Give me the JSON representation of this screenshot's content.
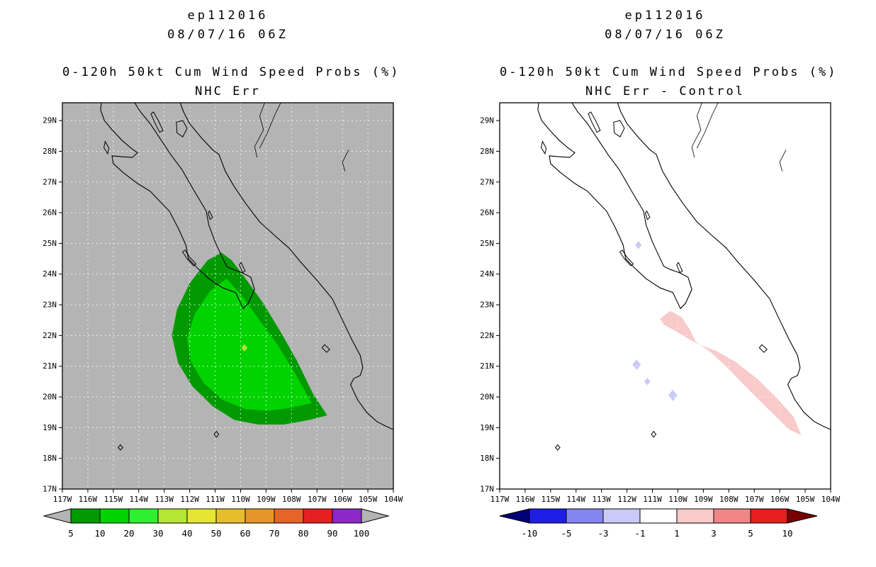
{
  "page": {
    "background": "#ffffff"
  },
  "basemap": {
    "coastlines": [
      [
        [
          -115.45,
          29.7
        ],
        [
          -115.5,
          29.35
        ],
        [
          -115.35,
          29.0
        ],
        [
          -115.05,
          28.7
        ],
        [
          -114.65,
          28.35
        ],
        [
          -114.3,
          28.1
        ],
        [
          -114.05,
          27.95
        ],
        [
          -114.25,
          27.8
        ],
        [
          -114.65,
          27.82
        ],
        [
          -115.05,
          27.85
        ],
        [
          -115.0,
          27.6
        ],
        [
          -114.6,
          27.3
        ],
        [
          -114.05,
          26.95
        ],
        [
          -113.55,
          26.7
        ],
        [
          -113.15,
          26.35
        ],
        [
          -112.8,
          26.05
        ],
        [
          -112.45,
          25.5
        ],
        [
          -112.15,
          24.95
        ],
        [
          -112.05,
          24.5
        ],
        [
          -111.7,
          24.2
        ],
        [
          -111.25,
          23.85
        ],
        [
          -110.7,
          23.55
        ],
        [
          -110.2,
          23.4
        ],
        [
          -109.9,
          22.88
        ],
        [
          -109.7,
          23.05
        ],
        [
          -109.45,
          23.5
        ],
        [
          -109.6,
          23.9
        ],
        [
          -109.95,
          24.05
        ],
        [
          -110.3,
          24.15
        ],
        [
          -110.55,
          24.25
        ],
        [
          -110.75,
          24.6
        ],
        [
          -111.0,
          25.05
        ],
        [
          -111.25,
          25.6
        ],
        [
          -111.35,
          26.05
        ],
        [
          -111.85,
          26.75
        ],
        [
          -112.3,
          27.4
        ],
        [
          -112.75,
          27.9
        ],
        [
          -113.15,
          28.4
        ],
        [
          -113.55,
          28.9
        ],
        [
          -113.95,
          29.3
        ],
        [
          -114.25,
          29.7
        ]
      ],
      [
        [
          -112.42,
          29.7
        ],
        [
          -112.25,
          29.3
        ],
        [
          -112.0,
          28.9
        ],
        [
          -111.55,
          28.45
        ],
        [
          -111.1,
          28.05
        ],
        [
          -110.85,
          27.9
        ],
        [
          -110.6,
          27.35
        ],
        [
          -110.25,
          26.85
        ],
        [
          -109.8,
          26.3
        ],
        [
          -109.25,
          25.7
        ],
        [
          -108.65,
          25.25
        ],
        [
          -108.1,
          24.85
        ],
        [
          -107.65,
          24.4
        ],
        [
          -107.0,
          23.8
        ],
        [
          -106.4,
          23.2
        ],
        [
          -106.0,
          22.5
        ],
        [
          -105.65,
          21.9
        ],
        [
          -105.3,
          21.35
        ],
        [
          -105.2,
          20.95
        ],
        [
          -105.3,
          20.7
        ],
        [
          -105.55,
          20.6
        ],
        [
          -105.68,
          20.4
        ],
        [
          -105.4,
          19.9
        ],
        [
          -105.05,
          19.5
        ],
        [
          -104.65,
          19.2
        ],
        [
          -104.3,
          19.05
        ],
        [
          -103.9,
          18.9
        ]
      ]
    ],
    "islands": [
      [
        [
          -113.42,
          29.28
        ],
        [
          -113.22,
          28.98
        ],
        [
          -113.05,
          28.68
        ],
        [
          -113.18,
          28.62
        ],
        [
          -113.38,
          28.95
        ],
        [
          -113.52,
          29.22
        ]
      ],
      [
        [
          -112.52,
          28.95
        ],
        [
          -112.27,
          29.0
        ],
        [
          -112.1,
          28.75
        ],
        [
          -112.27,
          28.47
        ],
        [
          -112.5,
          28.6
        ]
      ],
      [
        [
          -115.32,
          28.32
        ],
        [
          -115.17,
          28.1
        ],
        [
          -115.22,
          27.92
        ],
        [
          -115.37,
          28.12
        ]
      ],
      [
        [
          -112.18,
          24.78
        ],
        [
          -112.0,
          24.55
        ],
        [
          -111.75,
          24.33
        ],
        [
          -111.85,
          24.27
        ],
        [
          -112.1,
          24.5
        ],
        [
          -112.28,
          24.72
        ]
      ],
      [
        [
          -109.98,
          24.38
        ],
        [
          -109.82,
          24.1
        ],
        [
          -109.92,
          24.05
        ],
        [
          -110.05,
          24.3
        ]
      ],
      [
        [
          -111.22,
          26.05
        ],
        [
          -111.1,
          25.85
        ],
        [
          -111.2,
          25.78
        ],
        [
          -111.28,
          26.0
        ]
      ],
      [
        [
          -106.7,
          21.7
        ],
        [
          -106.5,
          21.55
        ],
        [
          -106.62,
          21.45
        ],
        [
          -106.8,
          21.6
        ]
      ],
      [
        [
          -110.95,
          18.88
        ],
        [
          -110.86,
          18.78
        ],
        [
          -110.95,
          18.69
        ],
        [
          -111.04,
          18.78
        ]
      ],
      [
        [
          -114.72,
          18.44
        ],
        [
          -114.63,
          18.35
        ],
        [
          -114.72,
          18.27
        ],
        [
          -114.81,
          18.35
        ]
      ]
    ],
    "rivers": [
      [
        [
          -109.0,
          29.7
        ],
        [
          -109.25,
          29.15
        ],
        [
          -109.1,
          28.7
        ],
        [
          -109.45,
          28.15
        ],
        [
          -109.35,
          27.8
        ]
      ],
      [
        [
          -108.35,
          29.7
        ],
        [
          -108.65,
          29.2
        ],
        [
          -108.95,
          28.6
        ],
        [
          -109.25,
          28.1
        ]
      ],
      [
        [
          -105.75,
          28.05
        ],
        [
          -106.0,
          27.65
        ],
        [
          -105.9,
          27.35
        ]
      ]
    ]
  },
  "chart_data": [
    {
      "type": "filled_contour_map",
      "panel": "left",
      "title": "ep112016",
      "init_time": "08/07/16 06Z",
      "subtitle": "0-120h 50kt Cum Wind Speed Probs (%)",
      "model_label": "NHC Err",
      "units": "%",
      "background_color": "#b4b4b4",
      "lon_range_deg_west": [
        117,
        104
      ],
      "lat_range_deg_north": [
        17,
        29.58
      ],
      "lat_ticks": [
        "17N",
        "18N",
        "19N",
        "20N",
        "21N",
        "22N",
        "23N",
        "24N",
        "25N",
        "26N",
        "27N",
        "28N",
        "29N"
      ],
      "lon_ticks": [
        "117W",
        "116W",
        "115W",
        "114W",
        "113W",
        "112W",
        "111W",
        "110W",
        "109W",
        "108W",
        "107W",
        "106W",
        "105W",
        "104W"
      ],
      "grid": {
        "show": true,
        "color": "#ffffff",
        "style": "dotted"
      },
      "regions": [
        {
          "name": "wind-prob-5pct",
          "level": "5-10%",
          "color": "#009a00",
          "polygon": [
            [
              -110.75,
              24.7
            ],
            [
              -111.3,
              24.45
            ],
            [
              -112.0,
              23.7
            ],
            [
              -112.5,
              22.85
            ],
            [
              -112.7,
              22.0
            ],
            [
              -112.45,
              21.1
            ],
            [
              -111.9,
              20.35
            ],
            [
              -111.1,
              19.7
            ],
            [
              -110.25,
              19.25
            ],
            [
              -109.3,
              19.1
            ],
            [
              -108.3,
              19.1
            ],
            [
              -107.3,
              19.25
            ],
            [
              -106.6,
              19.4
            ],
            [
              -107.15,
              20.1
            ],
            [
              -107.8,
              21.2
            ],
            [
              -108.45,
              22.15
            ],
            [
              -109.15,
              23.1
            ],
            [
              -109.8,
              23.85
            ],
            [
              -110.35,
              24.45
            ]
          ]
        },
        {
          "name": "wind-prob-10pct",
          "level": "10-20%",
          "color": "#00d300",
          "polygon": [
            [
              -110.55,
              23.85
            ],
            [
              -111.2,
              23.45
            ],
            [
              -111.8,
              22.7
            ],
            [
              -112.1,
              21.9
            ],
            [
              -111.95,
              21.15
            ],
            [
              -111.45,
              20.45
            ],
            [
              -110.7,
              19.9
            ],
            [
              -109.8,
              19.6
            ],
            [
              -108.9,
              19.55
            ],
            [
              -108.0,
              19.65
            ],
            [
              -107.2,
              19.8
            ],
            [
              -107.85,
              20.75
            ],
            [
              -108.55,
              21.7
            ],
            [
              -109.3,
              22.55
            ],
            [
              -109.95,
              23.3
            ]
          ]
        },
        {
          "name": "wind-prob-30pct",
          "level": "30-40%",
          "color": "#b4e632",
          "polygon": [
            [
              -109.85,
              21.72
            ],
            [
              -109.73,
              21.6
            ],
            [
              -109.85,
              21.48
            ],
            [
              -109.97,
              21.6
            ]
          ]
        }
      ],
      "colorbar": {
        "labels": [
          "5",
          "10",
          "20",
          "30",
          "40",
          "50",
          "60",
          "70",
          "80",
          "90",
          "100"
        ],
        "cell_colors": [
          "#009a00",
          "#00d300",
          "#2ef02e",
          "#b4e632",
          "#e6e632",
          "#e6be2d",
          "#e69628",
          "#e66428",
          "#e62020",
          "#8c28c8"
        ],
        "left_arrow_color": "#b4b4b4",
        "right_arrow_color": "#b4b4b4"
      }
    },
    {
      "type": "filled_contour_map",
      "panel": "right",
      "title": "ep112016",
      "init_time": "08/07/16 06Z",
      "subtitle": "0-120h 50kt Cum Wind Speed Probs (%)",
      "model_label": "NHC Err - Control",
      "units": "%",
      "background_color": "#ffffff",
      "lon_range_deg_west": [
        117,
        104
      ],
      "lat_range_deg_north": [
        17,
        29.58
      ],
      "lat_ticks": [
        "17N",
        "18N",
        "19N",
        "20N",
        "21N",
        "22N",
        "23N",
        "24N",
        "25N",
        "26N",
        "27N",
        "28N",
        "29N"
      ],
      "lon_ticks": [
        "117W",
        "116W",
        "115W",
        "114W",
        "113W",
        "112W",
        "111W",
        "110W",
        "109W",
        "108W",
        "107W",
        "106W",
        "105W",
        "104W"
      ],
      "grid": {
        "show": true,
        "color": "#ffffff",
        "style": "dotted"
      },
      "regions": [
        {
          "name": "diff-pos-1-3",
          "level": "1 to 3",
          "color": "#f8caca",
          "polygon": [
            [
              -110.7,
              22.55
            ],
            [
              -110.3,
              22.8
            ],
            [
              -109.85,
              22.6
            ],
            [
              -109.5,
              22.15
            ],
            [
              -109.3,
              21.8
            ],
            [
              -108.7,
              21.45
            ],
            [
              -108.05,
              20.95
            ],
            [
              -107.3,
              20.3
            ],
            [
              -106.45,
              19.6
            ],
            [
              -105.65,
              18.95
            ],
            [
              -105.15,
              18.75
            ],
            [
              -105.45,
              19.35
            ],
            [
              -106.1,
              19.95
            ],
            [
              -106.9,
              20.6
            ],
            [
              -107.75,
              21.15
            ],
            [
              -108.5,
              21.5
            ],
            [
              -109.15,
              21.7
            ],
            [
              -109.7,
              21.95
            ],
            [
              -110.2,
              22.2
            ],
            [
              -110.55,
              22.35
            ]
          ]
        },
        {
          "name": "diff-neg-1-3-a",
          "level": "-1 to -3",
          "color": "#cacaf8",
          "polygon": [
            [
              -111.55,
              25.08
            ],
            [
              -111.42,
              24.95
            ],
            [
              -111.55,
              24.82
            ],
            [
              -111.68,
              24.95
            ]
          ]
        },
        {
          "name": "diff-neg-1-3-b",
          "level": "-1 to -3",
          "color": "#cacaf8",
          "polygon": [
            [
              -111.62,
              21.22
            ],
            [
              -111.45,
              21.05
            ],
            [
              -111.62,
              20.88
            ],
            [
              -111.79,
              21.05
            ]
          ]
        },
        {
          "name": "diff-neg-1-3-c",
          "level": "-1 to -3",
          "color": "#cacaf8",
          "polygon": [
            [
              -111.2,
              20.62
            ],
            [
              -111.08,
              20.5
            ],
            [
              -111.2,
              20.38
            ],
            [
              -111.32,
              20.5
            ]
          ]
        },
        {
          "name": "diff-neg-1-3-d",
          "level": "-1 to -3",
          "color": "#cacaf8",
          "polygon": [
            [
              -110.2,
              20.23
            ],
            [
              -110.02,
              20.05
            ],
            [
              -110.2,
              19.87
            ],
            [
              -110.38,
              20.05
            ]
          ]
        }
      ],
      "colorbar": {
        "labels": [
          "-10",
          "-5",
          "-3",
          "-1",
          "1",
          "3",
          "5",
          "10"
        ],
        "cell_colors": [
          "#1e1ee6",
          "#8585f0",
          "#cacaf8",
          "#ffffff",
          "#f8caca",
          "#f08585",
          "#e61e1e"
        ],
        "left_arrow_color": "#000078",
        "right_arrow_color": "#780000"
      }
    }
  ]
}
